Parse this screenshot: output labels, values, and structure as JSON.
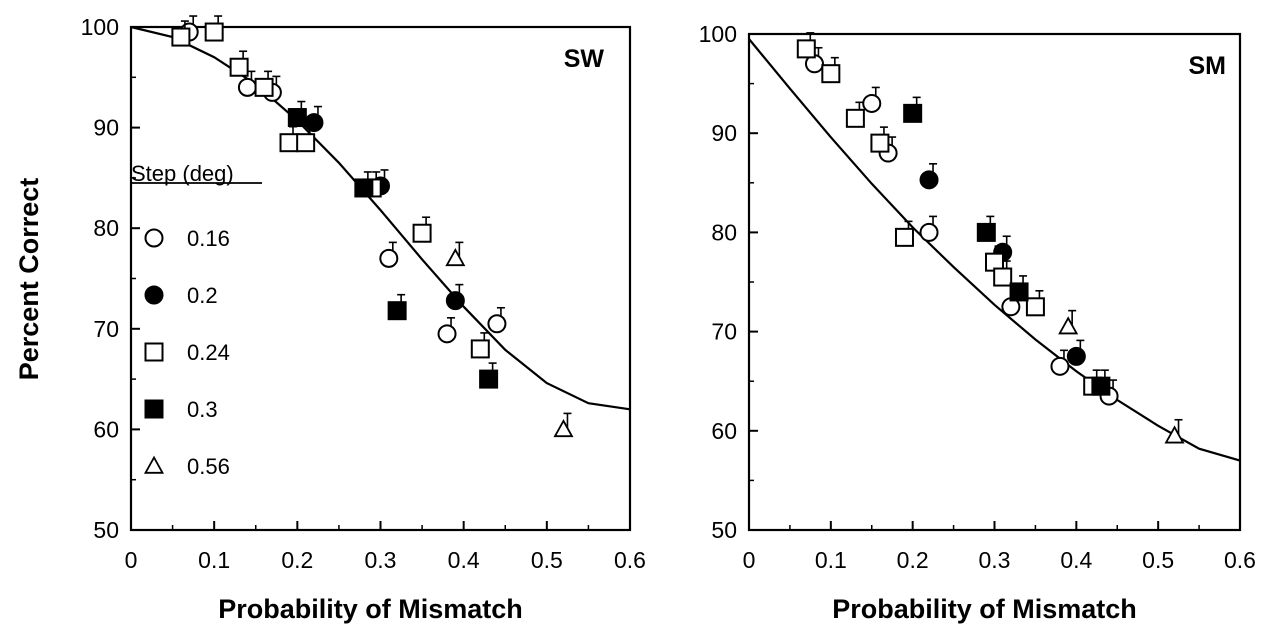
{
  "y_axis_title": "Percent Correct",
  "legend": {
    "title": "Step (deg)",
    "entries": [
      {
        "label": "0.16",
        "marker": "circle-open"
      },
      {
        "label": "0.2",
        "marker": "circle-filled"
      },
      {
        "label": "0.24",
        "marker": "square-open"
      },
      {
        "label": "0.3",
        "marker": "square-filled"
      },
      {
        "label": "0.56",
        "marker": "triangle-open"
      }
    ]
  },
  "chart_data": [
    {
      "type": "scatter",
      "panel_label": "SW",
      "xlabel": "Probability of Mismatch",
      "ylabel": "Percent Correct",
      "xlim": [
        0,
        0.6
      ],
      "ylim": [
        50,
        100
      ],
      "x_ticks": [
        "0",
        "0.1",
        "0.2",
        "0.3",
        "0.4",
        "0.5",
        "0.6"
      ],
      "y_ticks": [
        "50",
        "60",
        "70",
        "80",
        "90",
        "100"
      ],
      "fit_curve": {
        "x": [
          0,
          0.05,
          0.1,
          0.15,
          0.2,
          0.25,
          0.3,
          0.35,
          0.4,
          0.45,
          0.5,
          0.55,
          0.6
        ],
        "y": [
          100,
          99,
          97,
          94.3,
          90.7,
          86.5,
          81.8,
          76.9,
          72.2,
          67.9,
          64.6,
          62.6,
          62
        ]
      },
      "series": [
        {
          "marker": "circle-open",
          "points": [
            {
              "x": 0.07,
              "y": 99.5
            },
            {
              "x": 0.14,
              "y": 94
            },
            {
              "x": 0.17,
              "y": 93.5
            },
            {
              "x": 0.31,
              "y": 77
            },
            {
              "x": 0.38,
              "y": 69.5
            },
            {
              "x": 0.44,
              "y": 70.5
            }
          ]
        },
        {
          "marker": "circle-filled",
          "points": [
            {
              "x": 0.22,
              "y": 90.5
            },
            {
              "x": 0.3,
              "y": 84.2
            },
            {
              "x": 0.39,
              "y": 72.8
            }
          ]
        },
        {
          "marker": "square-open",
          "points": [
            {
              "x": 0.06,
              "y": 99
            },
            {
              "x": 0.1,
              "y": 99.5
            },
            {
              "x": 0.13,
              "y": 96
            },
            {
              "x": 0.16,
              "y": 94
            },
            {
              "x": 0.19,
              "y": 88.5
            },
            {
              "x": 0.21,
              "y": 88.5
            },
            {
              "x": 0.29,
              "y": 84
            },
            {
              "x": 0.35,
              "y": 79.5
            },
            {
              "x": 0.42,
              "y": 68
            }
          ]
        },
        {
          "marker": "square-filled",
          "points": [
            {
              "x": 0.2,
              "y": 91
            },
            {
              "x": 0.28,
              "y": 84
            },
            {
              "x": 0.32,
              "y": 71.8
            },
            {
              "x": 0.43,
              "y": 65
            }
          ]
        },
        {
          "marker": "triangle-open",
          "points": [
            {
              "x": 0.39,
              "y": 77
            },
            {
              "x": 0.52,
              "y": 60
            }
          ]
        }
      ]
    },
    {
      "type": "scatter",
      "panel_label": "SM",
      "xlabel": "Probability of Mismatch",
      "ylabel": "",
      "xlim": [
        0,
        0.6
      ],
      "ylim": [
        50,
        100
      ],
      "x_ticks": [
        "0",
        "0.1",
        "0.2",
        "0.3",
        "0.4",
        "0.5",
        "0.6"
      ],
      "y_ticks": [
        "50",
        "60",
        "70",
        "80",
        "90",
        "100"
      ],
      "fit_curve": {
        "x": [
          0,
          0.05,
          0.1,
          0.15,
          0.2,
          0.25,
          0.3,
          0.35,
          0.4,
          0.45,
          0.5,
          0.55,
          0.6
        ],
        "y": [
          99.5,
          94.5,
          89.6,
          84.9,
          80.5,
          76.5,
          72.7,
          69.2,
          66,
          63.1,
          60.5,
          58.2,
          57
        ]
      },
      "series": [
        {
          "marker": "circle-open",
          "points": [
            {
              "x": 0.08,
              "y": 97
            },
            {
              "x": 0.15,
              "y": 93
            },
            {
              "x": 0.17,
              "y": 88
            },
            {
              "x": 0.22,
              "y": 80
            },
            {
              "x": 0.32,
              "y": 72.5
            },
            {
              "x": 0.38,
              "y": 66.5
            },
            {
              "x": 0.44,
              "y": 63.5
            }
          ]
        },
        {
          "marker": "circle-filled",
          "points": [
            {
              "x": 0.22,
              "y": 85.3
            },
            {
              "x": 0.31,
              "y": 78
            },
            {
              "x": 0.4,
              "y": 67.5
            }
          ]
        },
        {
          "marker": "square-open",
          "points": [
            {
              "x": 0.07,
              "y": 98.5
            },
            {
              "x": 0.1,
              "y": 96
            },
            {
              "x": 0.13,
              "y": 91.5
            },
            {
              "x": 0.16,
              "y": 89
            },
            {
              "x": 0.19,
              "y": 79.5
            },
            {
              "x": 0.3,
              "y": 77
            },
            {
              "x": 0.31,
              "y": 75.5
            },
            {
              "x": 0.35,
              "y": 72.5
            },
            {
              "x": 0.42,
              "y": 64.5
            }
          ]
        },
        {
          "marker": "square-filled",
          "points": [
            {
              "x": 0.2,
              "y": 92
            },
            {
              "x": 0.29,
              "y": 80
            },
            {
              "x": 0.33,
              "y": 74
            },
            {
              "x": 0.43,
              "y": 64.5
            }
          ]
        },
        {
          "marker": "triangle-open",
          "points": [
            {
              "x": 0.39,
              "y": 70.5
            },
            {
              "x": 0.52,
              "y": 59.5
            }
          ]
        }
      ]
    }
  ]
}
